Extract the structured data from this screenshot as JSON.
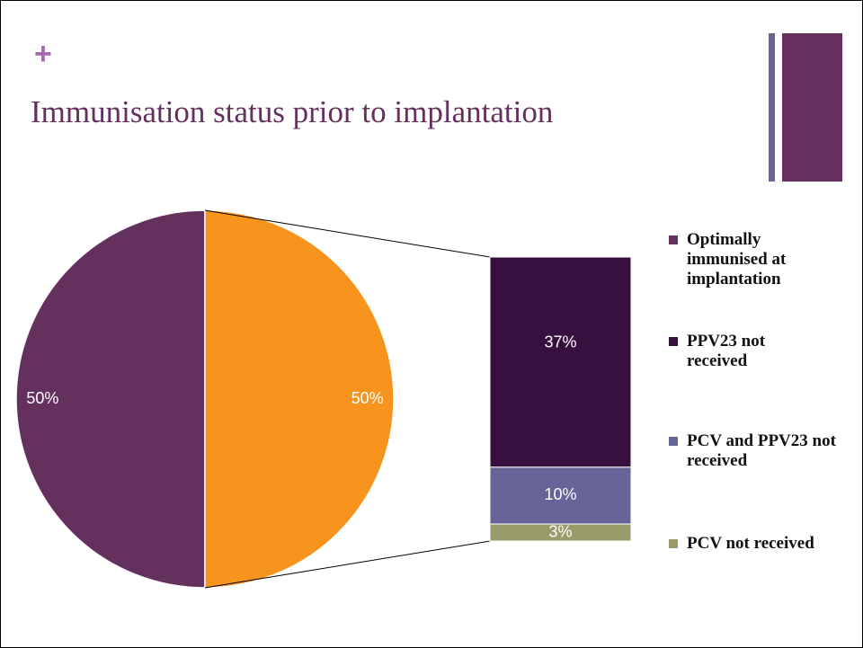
{
  "chart_data": {
    "type": "pie",
    "slide_mark": "+",
    "title": "Immunisation status prior to implantation",
    "pie": {
      "categories": [
        "Optimally immunised at implantation",
        null
      ],
      "values": [
        50,
        50
      ],
      "value_labels": [
        "50%",
        "50%"
      ],
      "colors": [
        "#64315f",
        "#f7941d"
      ]
    },
    "bar": {
      "categories": [
        "PPV23 not received",
        "PCV and PPV23 not received",
        "PCV not received"
      ],
      "values": [
        37,
        10,
        3
      ],
      "value_labels": [
        "37%",
        "10%",
        "3%"
      ],
      "colors": [
        "#371040",
        "#676598",
        "#9a9b6a"
      ]
    }
  }
}
